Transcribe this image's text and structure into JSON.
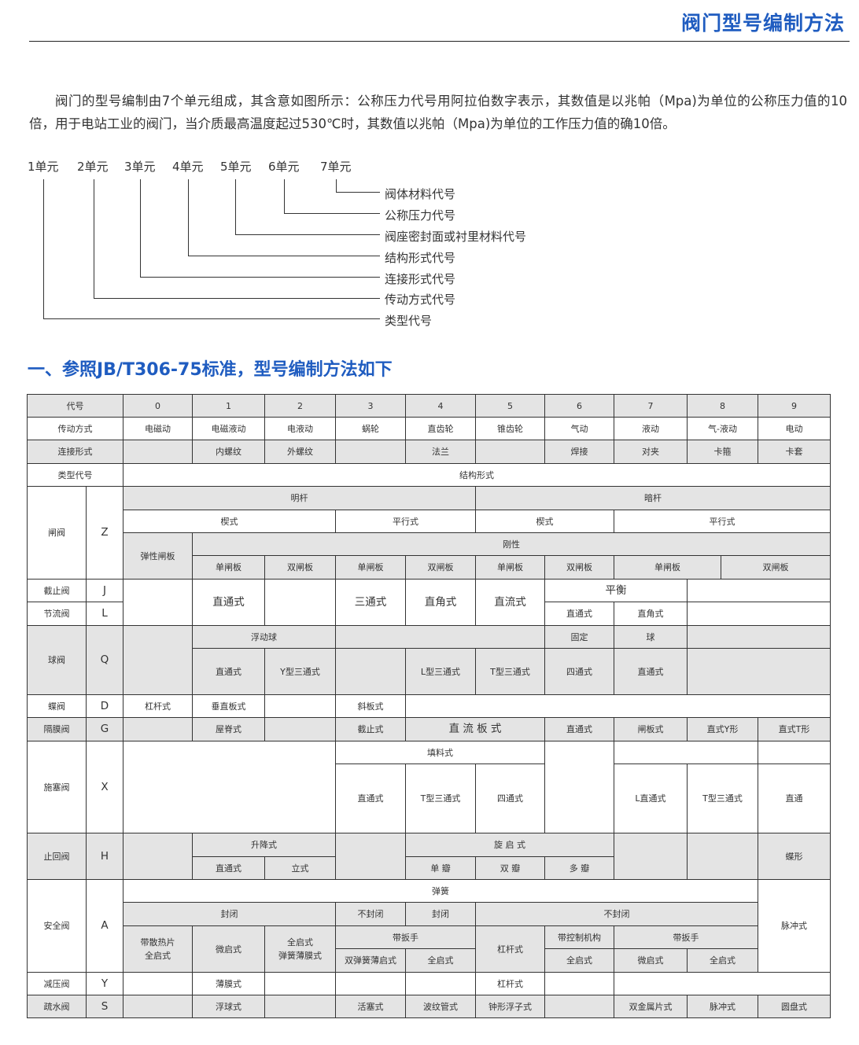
{
  "header": {
    "title": "阀门型号编制方法"
  },
  "intro": "阀门的型号编制由7个单元组成，其含意如图所示：公称压力代号用阿拉伯数字表示，其数值是以兆帕（Mpa)为单位的公称压力值的10倍，用于电站工业的阀门，当介质最高温度起过530℃时，其数值以兆帕（Mpa)为单位的工作压力值的确10倍。",
  "diagram": {
    "units": [
      "1单元",
      "2单元",
      "3单元",
      "4单元",
      "5单元",
      "6单元",
      "7单元"
    ],
    "labels": [
      "阀体材料代号",
      "公称压力代号",
      "阀座密封面或衬里材料代号",
      "结构形式代号",
      "连接形式代号",
      "传动方式代号",
      "类型代号"
    ]
  },
  "section_title": "一、参照JB/T306-75标准，型号编制方法如下",
  "table": {
    "rows": [
      [
        "代号",
        "0",
        "1",
        "2",
        "3",
        "4",
        "5",
        "6",
        "7",
        "8",
        "9"
      ],
      [
        "传动方式",
        "电磁动",
        "电磁液动",
        "电液动",
        "蜗轮",
        "直齿轮",
        "锥齿轮",
        "气动",
        "液动",
        "气-液动",
        "电动"
      ],
      [
        "连接形式",
        "",
        "内螺纹",
        "外螺纹",
        "",
        "法兰",
        "",
        "焊接",
        "对夹",
        "卡箍",
        "卡套"
      ],
      [
        "类型代号",
        "结构形式"
      ],
      [
        "闸阀",
        "Z",
        "明杆",
        "暗杆",
        "楔式",
        "平行式",
        "楔式",
        "平行式",
        "弹性闸板",
        "刚性",
        "单闸板",
        "双闸板",
        "单闸板",
        "双闸板",
        "单闸板",
        "双闸板",
        "单闸板",
        "双闸板"
      ],
      [
        "截止阀",
        "J",
        "节流阀",
        "L",
        "",
        "直通式",
        "",
        "三通式",
        "直角式",
        "直流式",
        "平衡",
        "",
        "直通式",
        "直角式",
        ""
      ],
      [
        "球阀",
        "Q",
        "",
        "浮动球",
        "",
        "固定",
        "球",
        "",
        "直通式",
        "Y型三通式",
        "",
        "L型三通式",
        "T型三通式",
        "四通式",
        "直通式",
        ""
      ],
      [
        "蝶阀",
        "D",
        "杠杆式",
        "垂直板式",
        "",
        "斜板式",
        ""
      ],
      [
        "隔膜阀",
        "G",
        "",
        "屋脊式",
        "",
        "截止式",
        "直 流 板 式",
        "直通式",
        "闸板式",
        "直式Y形",
        "直式T形"
      ],
      [
        "施塞阀",
        "X",
        "",
        "填料式",
        "直通式",
        "T型三通式",
        "四通式",
        "",
        "",
        "",
        "L直通式",
        "T型三通式",
        "直通"
      ],
      [
        "止回阀",
        "H",
        "",
        "升降式",
        "直通式",
        "立式",
        "",
        "旋 启 式",
        "单 瓣",
        "双 瓣",
        "多 瓣",
        "",
        "",
        "蝶形"
      ],
      [
        "安全阀",
        "A",
        "弹簧",
        "脉冲式",
        "封闭",
        "不封闭",
        "封闭",
        "不封闭",
        "带散热片\n全启式",
        "微启式",
        "全启式\n弹簧薄膜式",
        "带扳手",
        "双弹簧薄启式",
        "全启式",
        "杠杆式",
        "带控制机构",
        "全启式",
        "带扳手",
        "微启式",
        "全启式"
      ],
      [
        "减压阀",
        "Y",
        "",
        "薄膜式",
        "",
        "",
        "",
        "杠杆式",
        "",
        ""
      ],
      [
        "疏水阀",
        "S",
        "",
        "浮球式",
        "",
        "活塞式",
        "波纹管式",
        "钟形浮子式",
        "",
        "双金属片式",
        "脉冲式",
        "圆盘式"
      ]
    ]
  },
  "colors": {
    "accent": "#1f5cc0",
    "header_cell": "#e4e4e4",
    "border": "#333333"
  }
}
